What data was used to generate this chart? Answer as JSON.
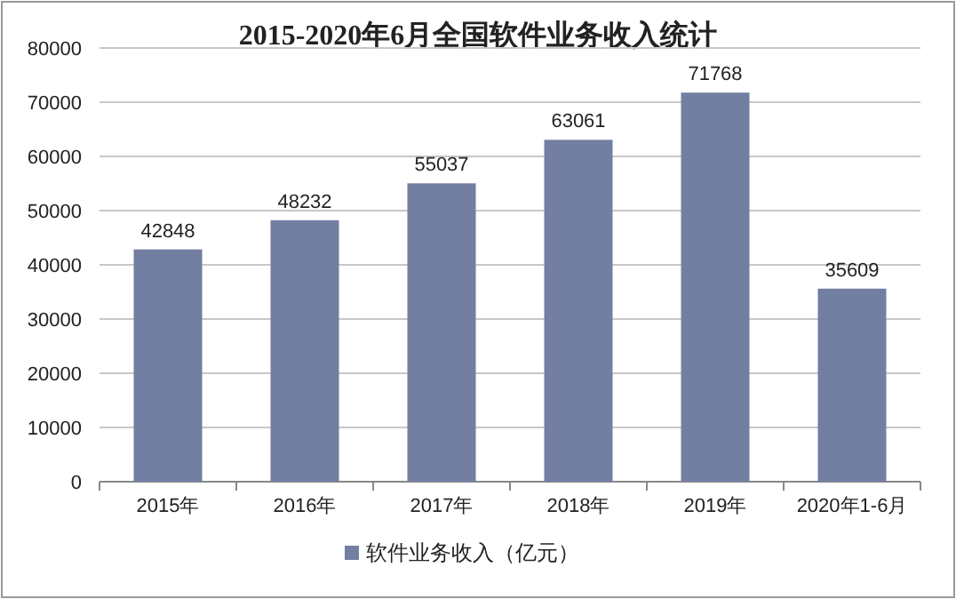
{
  "chart_data": {
    "type": "bar",
    "title": "2015-2020年6月全国软件业务收入统计",
    "categories": [
      "2015年",
      "2016年",
      "2017年",
      "2018年",
      "2019年",
      "2020年1-6月"
    ],
    "series": [
      {
        "name": "软件业务收入（亿元）",
        "color": "#737ea3",
        "values": [
          42848,
          48232,
          55037,
          63061,
          71768,
          35609
        ]
      }
    ],
    "ylim": [
      0,
      80000
    ],
    "yticks": [
      0,
      10000,
      20000,
      30000,
      40000,
      50000,
      60000,
      70000,
      80000
    ],
    "grid": "y",
    "legend": "bottom",
    "data_labels": true
  }
}
